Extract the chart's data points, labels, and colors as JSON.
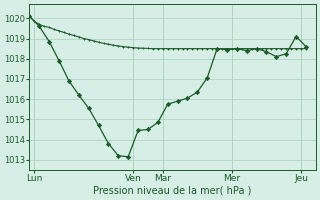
{
  "background_color": "#d6eee6",
  "grid_color": "#b0d4c4",
  "line_color": "#1a5c28",
  "title": "Pression niveau de la mer( hPa )",
  "ylim": [
    1012.5,
    1020.7
  ],
  "yticks": [
    1013,
    1014,
    1015,
    1016,
    1017,
    1018,
    1019,
    1020
  ],
  "day_labels": [
    "Lun",
    "Ven",
    "Mar",
    "Mer",
    "Jeu"
  ],
  "day_positions": [
    0.5,
    10.5,
    13.5,
    20.5,
    27.5
  ],
  "vline_positions": [
    0.5,
    10.5,
    13.5,
    20.5,
    27.5
  ],
  "x_max": 29,
  "line1_x": [
    0,
    0.5,
    1,
    1.5,
    2,
    2.5,
    3,
    3.5,
    4,
    4.5,
    5,
    5.5,
    6,
    6.5,
    7,
    7.5,
    8,
    8.5,
    9,
    9.5,
    10,
    10.5,
    11,
    11.5,
    12,
    12.5,
    13,
    13.5,
    14,
    14.5,
    15,
    15.5,
    16,
    16.5,
    17,
    17.5,
    18,
    18.5,
    19,
    19.5,
    20,
    20.5,
    21,
    21.5,
    22,
    22.5,
    23,
    23.5,
    24,
    24.5,
    25,
    25.5,
    26,
    26.5,
    27,
    27.5,
    28
  ],
  "line1_y": [
    1020.1,
    1019.85,
    1019.7,
    1019.6,
    1019.55,
    1019.45,
    1019.38,
    1019.3,
    1019.22,
    1019.15,
    1019.08,
    1019.0,
    1018.95,
    1018.88,
    1018.82,
    1018.76,
    1018.72,
    1018.67,
    1018.63,
    1018.6,
    1018.57,
    1018.55,
    1018.53,
    1018.52,
    1018.51,
    1018.5,
    1018.5,
    1018.5,
    1018.5,
    1018.5,
    1018.5,
    1018.5,
    1018.5,
    1018.5,
    1018.5,
    1018.5,
    1018.5,
    1018.5,
    1018.5,
    1018.5,
    1018.5,
    1018.5,
    1018.5,
    1018.5,
    1018.5,
    1018.5,
    1018.5,
    1018.5,
    1018.5,
    1018.5,
    1018.5,
    1018.5,
    1018.5,
    1018.5,
    1018.5,
    1018.5,
    1018.5
  ],
  "line2_x": [
    0,
    1,
    2,
    3,
    4,
    5,
    6,
    7,
    8,
    9,
    10,
    11,
    12,
    13,
    14,
    15,
    16,
    17,
    18,
    19,
    20,
    21,
    22,
    23,
    24,
    25,
    26,
    27,
    28
  ],
  "line2_y": [
    1020.1,
    1019.6,
    1018.85,
    1017.9,
    1016.9,
    1016.2,
    1015.55,
    1014.7,
    1013.8,
    1013.2,
    1013.15,
    1014.45,
    1014.5,
    1014.85,
    1015.75,
    1015.9,
    1016.05,
    1016.35,
    1017.05,
    1018.5,
    1018.45,
    1018.5,
    1018.4,
    1018.5,
    1018.35,
    1018.1,
    1018.25,
    1019.1,
    1018.6
  ]
}
